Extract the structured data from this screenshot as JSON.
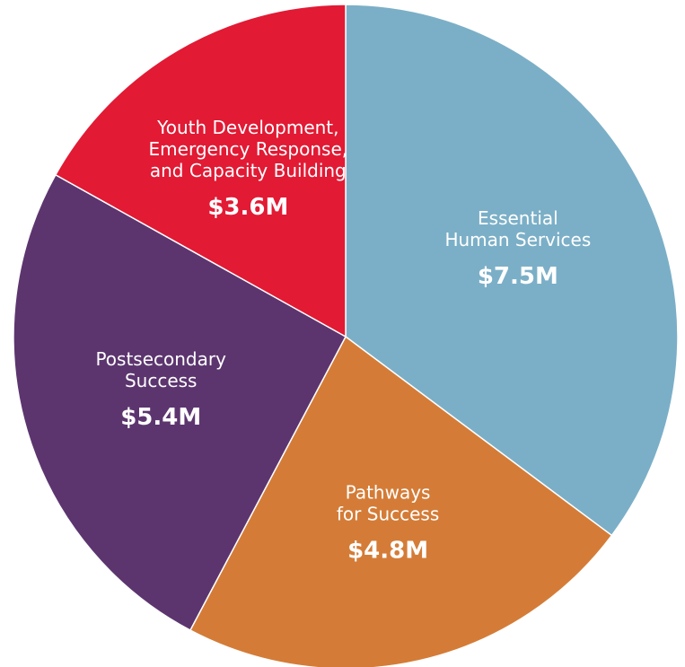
{
  "chart_data": {
    "type": "pie",
    "title": "",
    "unit": "$M",
    "slices": [
      {
        "label_lines": [
          "Essential",
          "Human Services"
        ],
        "value": 7.5,
        "value_label": "$7.5M",
        "color": "#7bafc7"
      },
      {
        "label_lines": [
          "Pathways",
          "for Success"
        ],
        "value": 4.8,
        "value_label": "$4.8M",
        "color": "#d47c37"
      },
      {
        "label_lines": [
          "Postsecondary",
          "Success"
        ],
        "value": 5.4,
        "value_label": "$5.4M",
        "color": "#5c356f"
      },
      {
        "label_lines": [
          "Youth Development,",
          "Emergency Response,",
          "and Capacity Building"
        ],
        "value": 3.6,
        "value_label": "$3.6M",
        "color": "#e21a34"
      }
    ]
  }
}
